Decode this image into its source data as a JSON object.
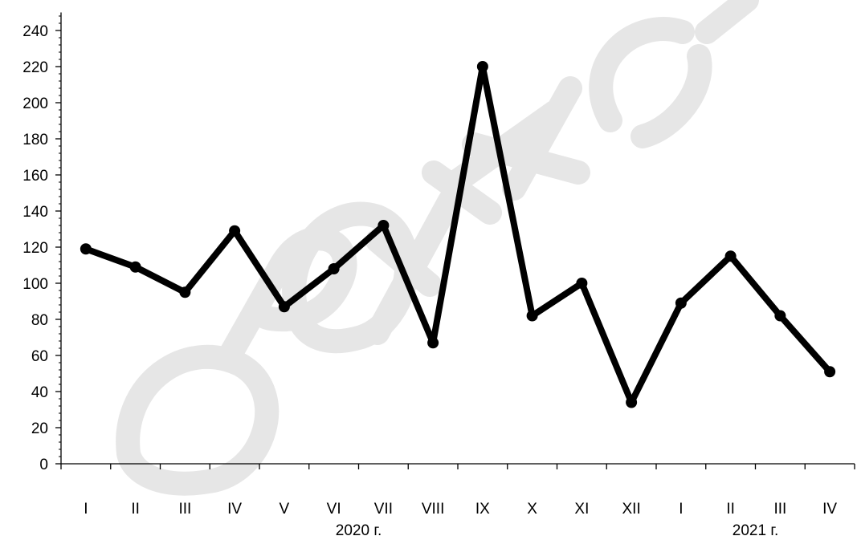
{
  "chart_data": {
    "type": "line",
    "categories": [
      "I",
      "II",
      "III",
      "IV",
      "V",
      "VI",
      "VII",
      "VIII",
      "IX",
      "X",
      "XI",
      "XII",
      "I",
      "II",
      "III",
      "IV"
    ],
    "groups": [
      {
        "label": "2020 г.",
        "start": 0,
        "end": 11
      },
      {
        "label": "2021 г.",
        "start": 12,
        "end": 15
      }
    ],
    "series": [
      {
        "values": [
          119,
          109,
          95,
          129,
          87,
          108,
          132,
          67,
          220,
          82,
          100,
          34,
          89,
          115,
          82,
          51
        ]
      }
    ],
    "yticks": [
      0,
      20,
      40,
      60,
      80,
      100,
      120,
      140,
      160,
      180,
      200,
      220,
      240
    ],
    "ylim": [
      0,
      250
    ],
    "title": "",
    "xlabel": "",
    "ylabel": "",
    "grid": false,
    "line_color": "#000000",
    "watermark_color": "#e6e6e6"
  }
}
